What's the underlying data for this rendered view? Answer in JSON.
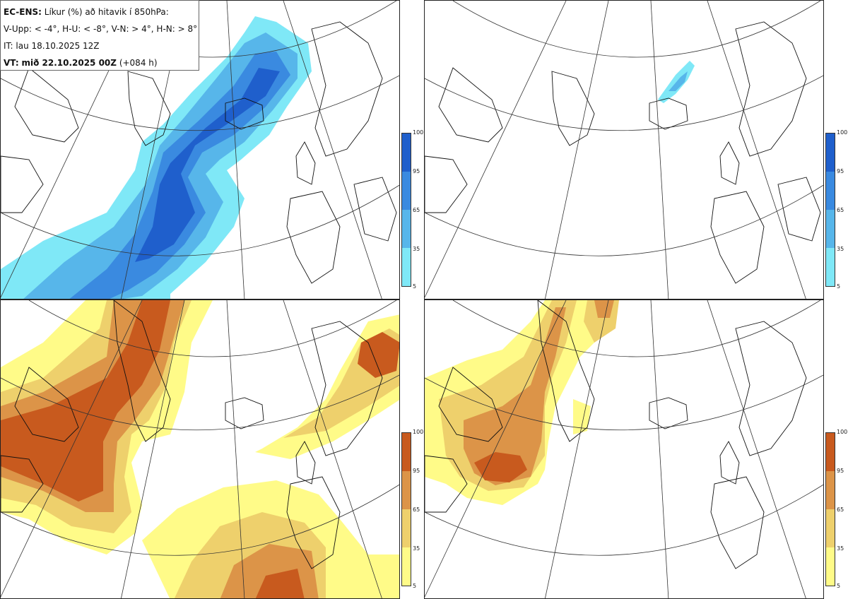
{
  "header": {
    "model": "EC-ENS:",
    "title": "Líkur (%) að hitavik í 850hPa:",
    "thresholds": "V-Upp: < -4°, H-U: < -8°, V-N: > 4°, H-N: > 8°",
    "init_time": "IT: lau 18.10.2025 12Z",
    "valid_label": "VT:",
    "valid_time": "mið 22.10.2025 00Z",
    "lead_time": "(+084 h)"
  },
  "panels": [
    {
      "id": "V-Upp",
      "palette": "blue"
    },
    {
      "id": "H-U",
      "palette": "blue"
    },
    {
      "id": "V-N",
      "palette": "orange"
    },
    {
      "id": "H-N",
      "palette": "orange"
    }
  ],
  "colorbar": {
    "ticks": [
      "100",
      "95",
      "65",
      "35",
      "5"
    ],
    "blue_colors": [
      "#1f5fcc",
      "#3a8ae0",
      "#57b6ea",
      "#7fe8f7"
    ],
    "orange_colors": [
      "#c85a1e",
      "#dc9448",
      "#eed06c",
      "#fffb88"
    ]
  }
}
